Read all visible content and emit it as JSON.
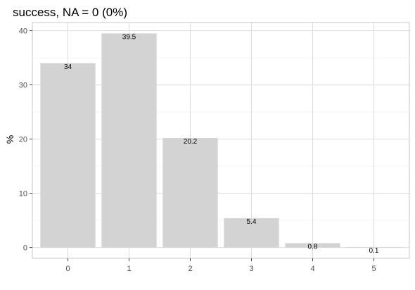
{
  "chart_data": {
    "type": "bar",
    "title": "success, NA = 0 (0%)",
    "xlabel": "",
    "ylabel": "%",
    "categories": [
      "0",
      "1",
      "2",
      "3",
      "4",
      "5"
    ],
    "values": [
      34,
      39.5,
      20.2,
      5.4,
      0.8,
      0.1
    ],
    "data_labels": [
      "34",
      "39.5",
      "20.2",
      "5.4",
      "0.8",
      "0.1"
    ],
    "y_ticks": [
      0,
      10,
      20,
      30,
      40
    ],
    "ylim": [
      -2,
      41.5
    ],
    "grid": true,
    "bar_color": "#d3d3d3"
  }
}
